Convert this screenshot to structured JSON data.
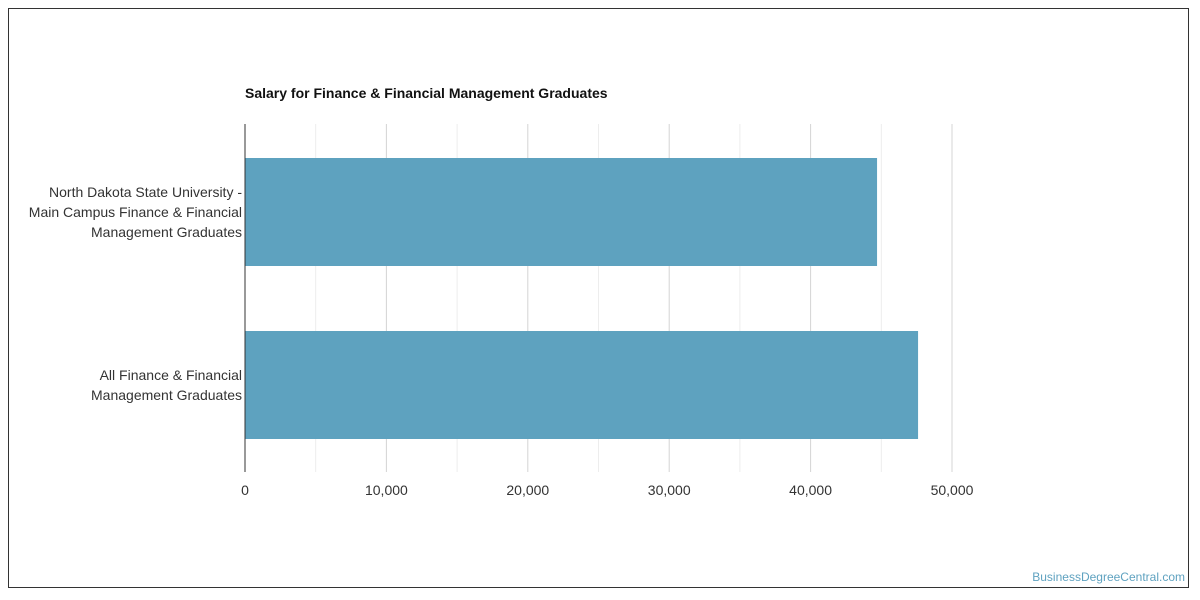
{
  "chart_data": {
    "type": "bar",
    "orientation": "horizontal",
    "title": "Salary for Finance & Financial Management Graduates",
    "categories": [
      [
        "North Dakota State University -",
        "Main Campus Finance & Financial",
        "Management Graduates"
      ],
      [
        "All Finance & Financial",
        "Management Graduates"
      ]
    ],
    "values": [
      44700,
      47600
    ],
    "xlim": [
      0,
      50000
    ],
    "x_ticks": [
      "0",
      "10,000",
      "20,000",
      "30,000",
      "40,000",
      "50,000"
    ],
    "x_tick_values": [
      0,
      10000,
      20000,
      30000,
      40000,
      50000
    ],
    "minor_grid_values": [
      5000,
      15000,
      25000,
      35000,
      45000
    ],
    "bar_color": "#5ea2bf",
    "grid": true,
    "legend": "none"
  },
  "watermark": "BusinessDegreeCentral.com"
}
